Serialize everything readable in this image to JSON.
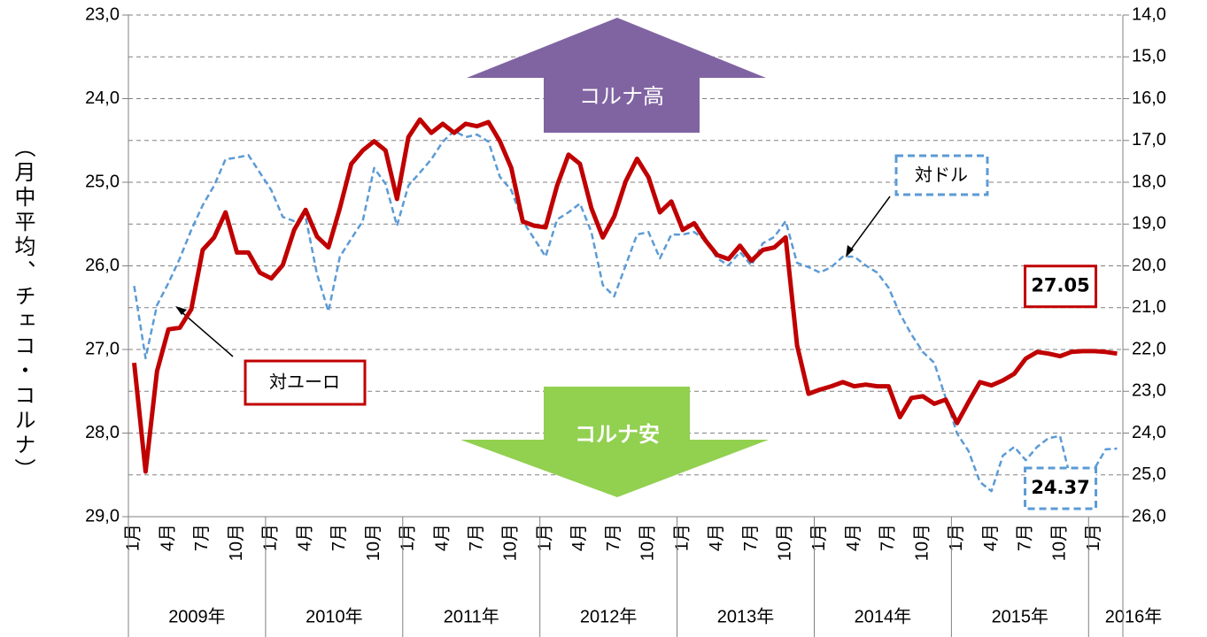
{
  "chart_data": {
    "type": "line",
    "y_label": "（月中平均、チェコ・コルナ）",
    "annotations": [
      "コルナ高",
      "コルナ安"
    ],
    "year_labels": [
      "2009年",
      "2010年",
      "2011年",
      "2012年",
      "2013年",
      "2014年",
      "2015年",
      "2016年"
    ],
    "categories": [
      "1月",
      null,
      null,
      "4月",
      null,
      null,
      "7月",
      null,
      null,
      "10月",
      null,
      null,
      "1月",
      null,
      null,
      "4月",
      null,
      null,
      "7月",
      null,
      null,
      "10月",
      null,
      null,
      "1月",
      null,
      null,
      "4月",
      null,
      null,
      "7月",
      null,
      null,
      "10月",
      null,
      null,
      "1月",
      null,
      null,
      "4月",
      null,
      null,
      "7月",
      null,
      null,
      "10月",
      null,
      null,
      "1月",
      null,
      null,
      "4月",
      null,
      null,
      "7月",
      null,
      null,
      "10月",
      null,
      null,
      "1月",
      null,
      null,
      "4月",
      null,
      null,
      "7月",
      null,
      null,
      "10月",
      null,
      null,
      "1月",
      null,
      null,
      "4月",
      null,
      null,
      "7月",
      null,
      null,
      "10月",
      null,
      null,
      "1月",
      null,
      null
    ],
    "ylim": [
      29,
      23
    ],
    "yticks": [
      {
        "value": 23,
        "label": "23,0"
      },
      {
        "value": 24,
        "label": "24,0"
      },
      {
        "value": 25,
        "label": "25,0"
      },
      {
        "value": 26,
        "label": "26,0"
      },
      {
        "value": 27,
        "label": "27,0"
      },
      {
        "value": 28,
        "label": "28,0"
      },
      {
        "value": 29,
        "label": "29,0"
      }
    ],
    "y2lim": [
      26,
      14
    ],
    "y2ticks": [
      {
        "value": 14,
        "label": "14,0"
      },
      {
        "value": 15,
        "label": "15,0"
      },
      {
        "value": 16,
        "label": "16,0"
      },
      {
        "value": 17,
        "label": "17,0"
      },
      {
        "value": 18,
        "label": "18,0"
      },
      {
        "value": 19,
        "label": "19,0"
      },
      {
        "value": 20,
        "label": "20,0"
      },
      {
        "value": 21,
        "label": "21,0"
      },
      {
        "value": 22,
        "label": "22,0"
      },
      {
        "value": 23,
        "label": "23,0"
      },
      {
        "value": 24,
        "label": "24,0"
      },
      {
        "value": 25,
        "label": "25,0"
      },
      {
        "value": 26,
        "label": "26,0"
      }
    ],
    "grid": true,
    "series": [
      {
        "name": "対ユーロ",
        "color": "#c00000",
        "dashed": false,
        "label_last": true,
        "values": [
          27.16,
          28.46,
          27.26,
          26.76,
          26.74,
          26.52,
          25.81,
          25.66,
          25.36,
          25.84,
          25.84,
          26.08,
          26.15,
          25.99,
          25.57,
          25.33,
          25.65,
          25.78,
          25.31,
          24.78,
          24.62,
          24.51,
          24.62,
          25.2,
          24.46,
          24.25,
          24.41,
          24.3,
          24.41,
          24.3,
          24.33,
          24.28,
          24.51,
          24.83,
          25.47,
          25.52,
          25.54,
          25.04,
          24.67,
          24.78,
          25.31,
          25.66,
          25.41,
          24.99,
          24.72,
          24.94,
          25.36,
          25.23,
          25.57,
          25.49,
          25.7,
          25.87,
          25.92,
          25.76,
          25.94,
          25.81,
          25.78,
          25.66,
          26.95,
          27.53,
          27.48,
          27.44,
          27.39,
          27.44,
          27.42,
          27.44,
          27.44,
          27.81,
          27.58,
          27.56,
          27.65,
          27.6,
          27.88,
          27.63,
          27.39,
          27.43,
          27.37,
          27.29,
          27.11,
          27.03,
          27.05,
          27.08,
          27.03,
          27.02,
          27.02,
          27.03,
          27.05
        ]
      },
      {
        "name": "対ドル",
        "color": "#5b9bd5",
        "dashed": true,
        "axis": "y2",
        "label_last": true,
        "values": [
          20.48,
          22.21,
          20.94,
          20.41,
          19.82,
          19.14,
          18.55,
          18.08,
          17.45,
          17.41,
          17.35,
          17.77,
          18.19,
          18.83,
          18.93,
          18.83,
          20.2,
          21.09,
          19.78,
          19.35,
          18.93,
          17.66,
          18.04,
          19.04,
          18.08,
          17.77,
          17.45,
          17.03,
          16.77,
          16.92,
          16.86,
          17.03,
          17.87,
          18.19,
          18.93,
          19.35,
          19.78,
          18.89,
          18.72,
          18.51,
          19.19,
          20.46,
          20.73,
          19.99,
          19.25,
          19.19,
          19.82,
          19.25,
          19.25,
          19.19,
          19.4,
          19.82,
          19.99,
          19.67,
          19.99,
          19.46,
          19.31,
          18.93,
          19.93,
          20.03,
          20.16,
          20.03,
          19.78,
          19.78,
          19.99,
          20.16,
          20.52,
          21.15,
          21.64,
          22.06,
          22.32,
          23.16,
          24.01,
          24.43,
          25.17,
          25.39,
          24.54,
          24.33,
          24.65,
          24.33,
          24.12,
          24.07,
          25.17,
          24.86,
          24.86,
          24.39,
          24.37
        ]
      }
    ]
  }
}
